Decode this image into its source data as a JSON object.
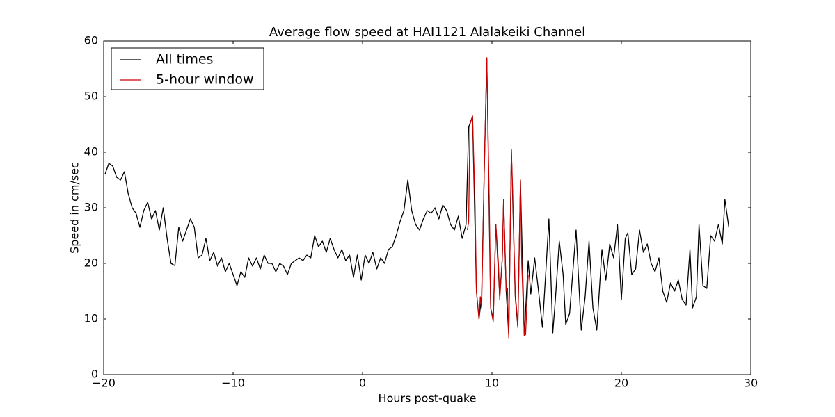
{
  "chart_data": {
    "type": "line",
    "title": "Average flow speed at HAI1121   Alalakeiki Channel",
    "x_label": "Hours post-quake",
    "y_label": "Speed in cm/sec",
    "xlim": [
      -20,
      30
    ],
    "ylim": [
      0,
      60
    ],
    "xticks": [
      {
        "value": -20,
        "label": "−20"
      },
      {
        "value": -10,
        "label": "−10"
      },
      0,
      10,
      20,
      30
    ],
    "yticks": [
      0,
      10,
      20,
      30,
      40,
      50,
      60
    ],
    "grid": false,
    "legend": "upper left",
    "series": [
      {
        "name": "All times",
        "color": "#000000",
        "x": [
          -19.9,
          -19.6,
          -19.3,
          -19,
          -18.7,
          -18.4,
          -18.1,
          -17.8,
          -17.5,
          -17.2,
          -16.9,
          -16.6,
          -16.3,
          -16,
          -15.7,
          -15.4,
          -15.1,
          -14.8,
          -14.5,
          -14.2,
          -13.9,
          -13.6,
          -13.3,
          -13,
          -12.7,
          -12.4,
          -12.1,
          -11.8,
          -11.5,
          -11.2,
          -10.9,
          -10.6,
          -10.3,
          -10,
          -9.7,
          -9.4,
          -9.1,
          -8.8,
          -8.5,
          -8.2,
          -7.9,
          -7.6,
          -7.3,
          -7,
          -6.7,
          -6.4,
          -6.1,
          -5.8,
          -5.5,
          -5.2,
          -4.9,
          -4.6,
          -4.3,
          -4,
          -3.7,
          -3.4,
          -3.1,
          -2.8,
          -2.5,
          -2.2,
          -1.9,
          -1.6,
          -1.3,
          -1,
          -0.7,
          -0.4,
          -0.1,
          0.2,
          0.5,
          0.8,
          1.1,
          1.4,
          1.7,
          2,
          2.3,
          2.6,
          2.9,
          3.2,
          3.5,
          3.8,
          4.1,
          4.4,
          4.7,
          5,
          5.3,
          5.6,
          5.9,
          6.2,
          6.5,
          6.8,
          7.1,
          7.4,
          7.7,
          8,
          8.2,
          8.5,
          8.8,
          9,
          9.2,
          9.4,
          9.6,
          9.9,
          10.1,
          10.3,
          10.6,
          10.8,
          10.9,
          11.1,
          11.3,
          11.5,
          11.8,
          12,
          12.2,
          12.5,
          12.8,
          13,
          13.3,
          13.6,
          13.9,
          14.2,
          14.4,
          14.7,
          14.9,
          15.2,
          15.5,
          15.7,
          16,
          16.3,
          16.5,
          16.9,
          17.2,
          17.5,
          17.8,
          18.1,
          18.5,
          18.8,
          19.1,
          19.4,
          19.7,
          20,
          20.3,
          20.5,
          20.8,
          21.1,
          21.4,
          21.7,
          22,
          22.3,
          22.6,
          22.9,
          23.2,
          23.5,
          23.8,
          24.1,
          24.4,
          24.7,
          25,
          25.3,
          25.5,
          25.8,
          26,
          26.3,
          26.6,
          26.9,
          27.2,
          27.5,
          27.8,
          28,
          28.3
        ],
        "values": [
          36,
          38,
          37.5,
          35.5,
          35,
          36.5,
          32.5,
          30,
          29,
          26.5,
          29.5,
          31,
          28,
          29.5,
          26,
          30,
          24.5,
          20,
          19.6,
          26.5,
          24,
          26,
          28,
          26.5,
          21,
          21.5,
          24.5,
          20.5,
          22,
          19.5,
          21,
          18.5,
          20,
          18,
          16,
          18.5,
          17.5,
          21,
          19.5,
          21,
          19,
          21.5,
          20,
          20,
          18.5,
          20,
          19.5,
          18,
          20,
          20.5,
          21,
          20.5,
          21.5,
          21,
          25,
          23,
          24,
          22,
          24.5,
          22.5,
          21,
          22.5,
          20.5,
          21.5,
          17.5,
          21.5,
          17,
          21.5,
          20,
          22,
          19,
          21,
          20,
          22.5,
          23,
          25,
          27.5,
          29.5,
          35,
          29.5,
          27,
          26,
          28,
          29.5,
          29,
          30,
          28,
          30.5,
          29.5,
          27,
          26,
          28.5,
          24.5,
          27,
          44.5,
          46.5,
          15,
          10,
          14,
          36,
          57,
          12,
          10,
          27,
          14,
          21,
          31.5,
          15,
          7,
          40.5,
          14,
          8.5,
          35,
          7,
          20.5,
          14.5,
          21,
          15,
          8.5,
          20,
          28,
          7.5,
          13.5,
          24,
          18,
          9,
          11,
          20,
          26,
          8,
          14,
          24,
          12,
          8,
          22.5,
          17,
          23.5,
          21,
          27,
          13.5,
          24.5,
          25.5,
          18,
          19,
          26,
          22,
          23.5,
          20,
          18.5,
          21,
          15,
          13,
          16.5,
          15,
          17,
          13.5,
          12.5,
          22.5,
          12,
          14,
          27,
          16,
          15.5,
          25,
          24,
          27,
          23.5,
          31.5,
          26.5
        ]
      },
      {
        "name": "5-hour window",
        "color": "#cc0000",
        "x": [
          8.1,
          8.2,
          8.3,
          8.5,
          8.7,
          8.8,
          9,
          9.1,
          9.2,
          9.4,
          9.6,
          9.8,
          9.9,
          10.1,
          10.3,
          10.5,
          10.6,
          10.8,
          10.9,
          11.1,
          11.2,
          11.3,
          11.5,
          11.6,
          11.8,
          11.9,
          12,
          12.2,
          12.3,
          12.5,
          12.6,
          12.8
        ],
        "values": [
          26,
          27.5,
          45,
          46.5,
          30,
          15,
          10,
          14,
          12,
          36,
          57,
          30,
          12,
          9.5,
          27,
          20,
          13.5,
          21,
          31.5,
          15,
          15.5,
          6.5,
          40.5,
          33,
          14.5,
          12,
          8.5,
          35,
          20,
          7,
          7.2,
          18
        ]
      }
    ]
  }
}
